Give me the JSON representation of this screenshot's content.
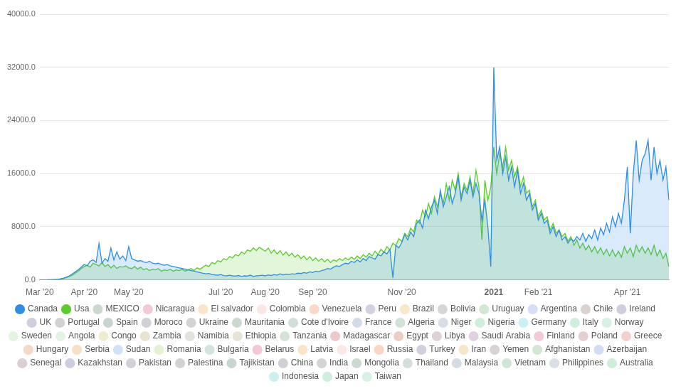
{
  "chart_data": {
    "type": "line",
    "categories": [
      "Mar '20",
      null,
      null,
      null,
      null,
      null,
      null,
      null,
      null,
      null,
      null,
      null,
      null,
      null,
      null,
      "Apr '20",
      null,
      null,
      null,
      null,
      null,
      null,
      null,
      null,
      null,
      null,
      null,
      null,
      null,
      null,
      "May '20",
      null,
      null,
      null,
      null,
      null,
      null,
      null,
      null,
      null,
      null,
      null,
      null,
      null,
      null,
      null,
      null,
      null,
      null,
      null,
      null,
      null,
      null,
      null,
      null,
      null,
      null,
      null,
      null,
      null,
      null,
      "Jul '20",
      null,
      null,
      null,
      null,
      null,
      null,
      null,
      null,
      null,
      null,
      null,
      null,
      null,
      null,
      "Aug '20",
      null,
      null,
      null,
      null,
      null,
      null,
      null,
      null,
      null,
      null,
      null,
      null,
      null,
      null,
      null,
      "Sep '20",
      null,
      null,
      null,
      null,
      null,
      null,
      null,
      null,
      null,
      null,
      null,
      null,
      null,
      null,
      null,
      null,
      null,
      null,
      null,
      null,
      null,
      null,
      null,
      null,
      null,
      null,
      null,
      null,
      null,
      "Nov '20",
      null,
      null,
      null,
      null,
      null,
      null,
      null,
      null,
      null,
      null,
      null,
      null,
      null,
      null,
      null,
      null,
      null,
      null,
      null,
      null,
      null,
      null,
      null,
      null,
      null,
      null,
      null,
      null,
      null,
      null,
      "2021",
      null,
      null,
      null,
      null,
      null,
      null,
      null,
      null,
      null,
      null,
      null,
      null,
      null,
      null,
      "Feb '21",
      null,
      null,
      null,
      null,
      null,
      null,
      null,
      null,
      null,
      null,
      null,
      null,
      null,
      null,
      null,
      null,
      null,
      null,
      null,
      null,
      null,
      null,
      null,
      null,
      null,
      null,
      null,
      null,
      null,
      "Apr '21",
      null,
      null,
      null,
      null,
      null,
      null,
      null,
      null,
      null,
      null,
      null,
      null,
      null,
      null
    ],
    "series": [
      {
        "name": "Canada",
        "color": "#2f8de4",
        "values": [
          0,
          0,
          0,
          10,
          20,
          40,
          80,
          150,
          250,
          400,
          600,
          900,
          1200,
          1500,
          1900,
          2300,
          2100,
          2800,
          3000,
          2600,
          5500,
          2500,
          3200,
          2800,
          4800,
          3000,
          4200,
          3100,
          3600,
          2900,
          5000,
          3200,
          3000,
          2800,
          2900,
          2700,
          2600,
          2800,
          2500,
          2400,
          2500,
          2300,
          2200,
          2300,
          2100,
          2000,
          1900,
          1800,
          1700,
          1600,
          1500,
          1400,
          1300,
          1200,
          1100,
          1000,
          900,
          950,
          800,
          750,
          700,
          800,
          650,
          600,
          700,
          600,
          550,
          650,
          500,
          600,
          550,
          700,
          500,
          600,
          650,
          700,
          600,
          750,
          650,
          800,
          700,
          900,
          750,
          850,
          800,
          900,
          850,
          1000,
          950,
          1100,
          1000,
          1200,
          1100,
          1300,
          1200,
          1400,
          1500,
          1700,
          1600,
          1900,
          2100,
          2000,
          2300,
          2500,
          2400,
          2800,
          2600,
          3000,
          2700,
          3200,
          2900,
          3500,
          3300,
          3100,
          3800,
          3600,
          4200,
          3900,
          4600,
          300,
          5200,
          4800,
          5600,
          6800,
          6000,
          7200,
          6500,
          8500,
          9000,
          7800,
          10500,
          9200,
          11000,
          12000,
          10000,
          13500,
          11000,
          12500,
          14000,
          11500,
          13000,
          15500,
          12000,
          14000,
          13000,
          15000,
          12500,
          14500,
          13000,
          9000,
          12000,
          8000,
          2000,
          32000,
          18000,
          20000,
          16000,
          18500,
          15000,
          17000,
          14000,
          16500,
          13000,
          14500,
          12000,
          13000,
          10500,
          11500,
          9000,
          10000,
          8500,
          9000,
          7000,
          8000,
          6500,
          7500,
          6000,
          6500,
          5500,
          6200,
          5800,
          6500,
          6000,
          7000,
          5800,
          6800,
          6200,
          7500,
          6000,
          7800,
          6800,
          8500,
          7200,
          9500,
          8000,
          10000,
          8500,
          12000,
          17000,
          7000,
          16000,
          21000,
          15000,
          18000,
          19000,
          21000,
          15000,
          20000,
          16000,
          18000,
          15000,
          17000,
          12000
        ]
      },
      {
        "name": "Usa",
        "color": "#5ccb2c",
        "values": [
          0,
          0,
          0,
          0,
          10,
          30,
          60,
          100,
          200,
          350,
          500,
          700,
          1000,
          1300,
          1700,
          2000,
          2200,
          1900,
          2500,
          2300,
          2100,
          2600,
          2000,
          2300,
          1800,
          2200,
          1700,
          2000,
          1900,
          2100,
          1800,
          1700,
          2000,
          1600,
          1900,
          1500,
          1700,
          1400,
          1600,
          1500,
          1700,
          1300,
          1500,
          1400,
          1600,
          1300,
          1500,
          1400,
          1600,
          1300,
          1500,
          1700,
          1400,
          1800,
          1600,
          1900,
          2200,
          2000,
          2600,
          2400,
          2900,
          2700,
          3200,
          3000,
          3500,
          3300,
          3800,
          3600,
          4200,
          3900,
          4500,
          4300,
          4800,
          4400,
          4900,
          4600,
          4300,
          4800,
          4000,
          4500,
          3900,
          4400,
          3700,
          4200,
          3600,
          4000,
          3400,
          3800,
          3200,
          3600,
          3000,
          3500,
          2900,
          3300,
          2800,
          3200,
          2700,
          3100,
          2600,
          3000,
          2800,
          3200,
          2900,
          3300,
          3000,
          3400,
          3100,
          3600,
          3200,
          3800,
          3400,
          4000,
          3600,
          4300,
          3800,
          4600,
          4100,
          5000,
          4500,
          5500,
          5200,
          6200,
          5800,
          7000,
          6500,
          7800,
          7200,
          9000,
          8500,
          10500,
          9500,
          11500,
          10000,
          12500,
          11000,
          13000,
          11500,
          14500,
          12000,
          15000,
          13500,
          16000,
          12500,
          14500,
          13500,
          15500,
          13000,
          16500,
          14000,
          6000,
          15000,
          12000,
          14000,
          20000,
          16000,
          19000,
          17000,
          20000,
          16500,
          18000,
          15500,
          17000,
          14000,
          15500,
          13000,
          13500,
          11000,
          12000,
          9500,
          10500,
          9000,
          9500,
          7500,
          8500,
          7000,
          7500,
          6500,
          7000,
          5800,
          6500,
          5200,
          6000,
          4800,
          5500,
          4500,
          5200,
          4200,
          5000,
          4000,
          4800,
          3800,
          4600,
          3600,
          4500,
          3500,
          4300,
          3400,
          5000,
          4000,
          4800,
          3500,
          5200,
          4200,
          5000,
          4000,
          4800,
          3800,
          5200,
          3600,
          4500,
          3200,
          4000,
          2000
        ]
      }
    ],
    "hidden_series": [
      {
        "name": "MEXICO",
        "color": "#cbd8d0"
      },
      {
        "name": "Nicaragua",
        "color": "#f4c9d4"
      },
      {
        "name": "El salvador",
        "color": "#fbe4c8"
      },
      {
        "name": "Colombia",
        "color": "#fde6e6"
      },
      {
        "name": "Venezuela",
        "color": "#fbd8c8"
      },
      {
        "name": "Peru",
        "color": "#d4d1e2"
      },
      {
        "name": "Brazil",
        "color": "#f8e8c8"
      },
      {
        "name": "Bolivia",
        "color": "#d8d5d5"
      },
      {
        "name": "Uruguay",
        "color": "#d1e8d1"
      },
      {
        "name": "Argentina",
        "color": "#d5ddf8"
      },
      {
        "name": "Chile",
        "color": "#dbd1d1"
      },
      {
        "name": "Ireland",
        "color": "#cfcfe0"
      },
      {
        "name": "UK",
        "color": "#cfd0dc"
      },
      {
        "name": "Portugal",
        "color": "#d2d2d2"
      },
      {
        "name": "Spain",
        "color": "#c6d6cf"
      },
      {
        "name": "Moroco",
        "color": "#d0d0d6"
      },
      {
        "name": "Ukraine",
        "color": "#d3d3d3"
      },
      {
        "name": "Mauritania",
        "color": "#c9d9d0"
      },
      {
        "name": "Cote d'Ivoire",
        "color": "#d1dedb"
      },
      {
        "name": "France",
        "color": "#d5dbe6"
      },
      {
        "name": "Algeria",
        "color": "#cfe4d6"
      },
      {
        "name": "Niger",
        "color": "#d8dde8"
      },
      {
        "name": "Nigeria",
        "color": "#cdeed8"
      },
      {
        "name": "Germany",
        "color": "#c9f0f2"
      },
      {
        "name": "Italy",
        "color": "#cfeedd"
      },
      {
        "name": "Norway",
        "color": "#d6f0e4"
      },
      {
        "name": "Sweden",
        "color": "#e2f6df"
      },
      {
        "name": "Angola",
        "color": "#e4f4e4"
      },
      {
        "name": "Congo",
        "color": "#f0ecd0"
      },
      {
        "name": "Zambia",
        "color": "#e9e2cf"
      },
      {
        "name": "Namibia",
        "color": "#e2e2de"
      },
      {
        "name": "Ethiopia",
        "color": "#e6e4d6"
      },
      {
        "name": "Tanzania",
        "color": "#d4e2d8"
      },
      {
        "name": "Madagascar",
        "color": "#eccacb"
      },
      {
        "name": "Egypt",
        "color": "#e9cfc5"
      },
      {
        "name": "Libya",
        "color": "#ddd2d8"
      },
      {
        "name": "Saudi Arabia",
        "color": "#ddd3e0"
      },
      {
        "name": "Finland",
        "color": "#f2c9d6"
      },
      {
        "name": "Poland",
        "color": "#e3cfd2"
      },
      {
        "name": "Greece",
        "color": "#f2d0cb"
      },
      {
        "name": "Hungary",
        "color": "#f6d8c6"
      },
      {
        "name": "Serbia",
        "color": "#f7e0c4"
      },
      {
        "name": "Sudan",
        "color": "#d0e1f8"
      },
      {
        "name": "Romania",
        "color": "#e4f1d3"
      },
      {
        "name": "Bulgaria",
        "color": "#d4e4dc"
      },
      {
        "name": "Belarus",
        "color": "#f4c7d4"
      },
      {
        "name": "Latvia",
        "color": "#fbe4c6"
      },
      {
        "name": "Israel",
        "color": "#fde8e8"
      },
      {
        "name": "Russia",
        "color": "#fbd5c2"
      },
      {
        "name": "Turkey",
        "color": "#d1cfe0"
      },
      {
        "name": "Iran",
        "color": "#f8e7c6"
      },
      {
        "name": "Yemen",
        "color": "#d9d4d4"
      },
      {
        "name": "Afghanistan",
        "color": "#d3e6d1"
      },
      {
        "name": "Azerbaijan",
        "color": "#d3dcf6"
      },
      {
        "name": "Senegal",
        "color": "#dbcfcf"
      },
      {
        "name": "Kazakhstan",
        "color": "#cdcde0"
      },
      {
        "name": "Pakistan",
        "color": "#d1d1dc"
      },
      {
        "name": "Palestina",
        "color": "#d2d2d2"
      },
      {
        "name": "Tajikistan",
        "color": "#c7d6cf"
      },
      {
        "name": "China",
        "color": "#d1d0d6"
      },
      {
        "name": "India",
        "color": "#d4d4d4"
      },
      {
        "name": "Mongolia",
        "color": "#cbdad1"
      },
      {
        "name": "Thailand",
        "color": "#d2dfdc"
      },
      {
        "name": "Malaysia",
        "color": "#d6dce6"
      },
      {
        "name": "Vietnam",
        "color": "#d0e5d6"
      },
      {
        "name": "Philippines",
        "color": "#d9dee8"
      },
      {
        "name": "Australia",
        "color": "#ceeed9"
      },
      {
        "name": "Indonesia",
        "color": "#caf0f2"
      },
      {
        "name": "Japan",
        "color": "#d0eedd"
      },
      {
        "name": "Taiwan",
        "color": "#d8f1e5"
      }
    ],
    "ylim": [
      0,
      40000
    ],
    "yticks": [
      {
        "value": 0,
        "label": "0.0"
      },
      {
        "value": 8000,
        "label": "8000.0"
      },
      {
        "value": 16000,
        "label": "16000.0"
      },
      {
        "value": 24000,
        "label": "24000.0"
      },
      {
        "value": 32000,
        "label": "32000.0"
      },
      {
        "value": 40000,
        "label": "40000.0"
      }
    ],
    "grid": true,
    "legend": "bottom"
  }
}
